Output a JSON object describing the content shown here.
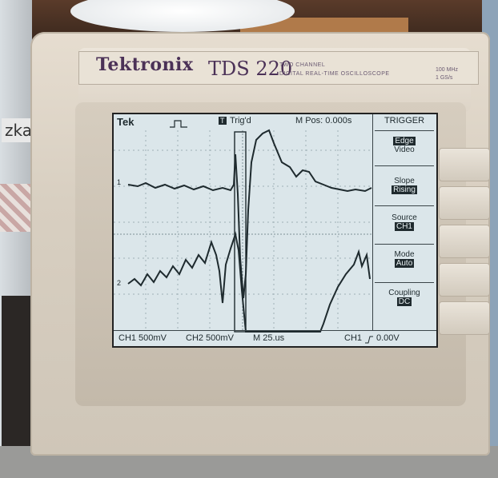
{
  "panel": {
    "brand": "Tektronix",
    "model": "TDS 220",
    "model_sub_line1": "TWO CHANNEL",
    "model_sub_line2": "DIGITAL REAL-TIME OSCILLOSCOPE",
    "spec_bandwidth": "100 MHz",
    "spec_samplerate": "1 GS/s"
  },
  "background": {
    "side_label": "zka"
  },
  "screen": {
    "status_left": "Tek",
    "trig_status": "Trig'd",
    "trig_marker": "T",
    "m_pos": "M Pos: 0.000s",
    "menu_title": "TRIGGER",
    "menu": [
      {
        "label": "Edge",
        "value": "Video",
        "selected": "Edge"
      },
      {
        "label": "Slope",
        "value": "Rising"
      },
      {
        "label": "Source",
        "value": "CH1"
      },
      {
        "label": "Mode",
        "value": "Auto"
      },
      {
        "label": "Coupling",
        "value": "DC"
      }
    ],
    "ch1_marker": "1",
    "ch2_marker": "2",
    "ch1_scale": "CH1  500mV",
    "ch2_scale": "CH2  500mV",
    "timebase": "M 25.us",
    "trigger_readout_src": "CH1",
    "trigger_readout_level": "0.00V"
  }
}
